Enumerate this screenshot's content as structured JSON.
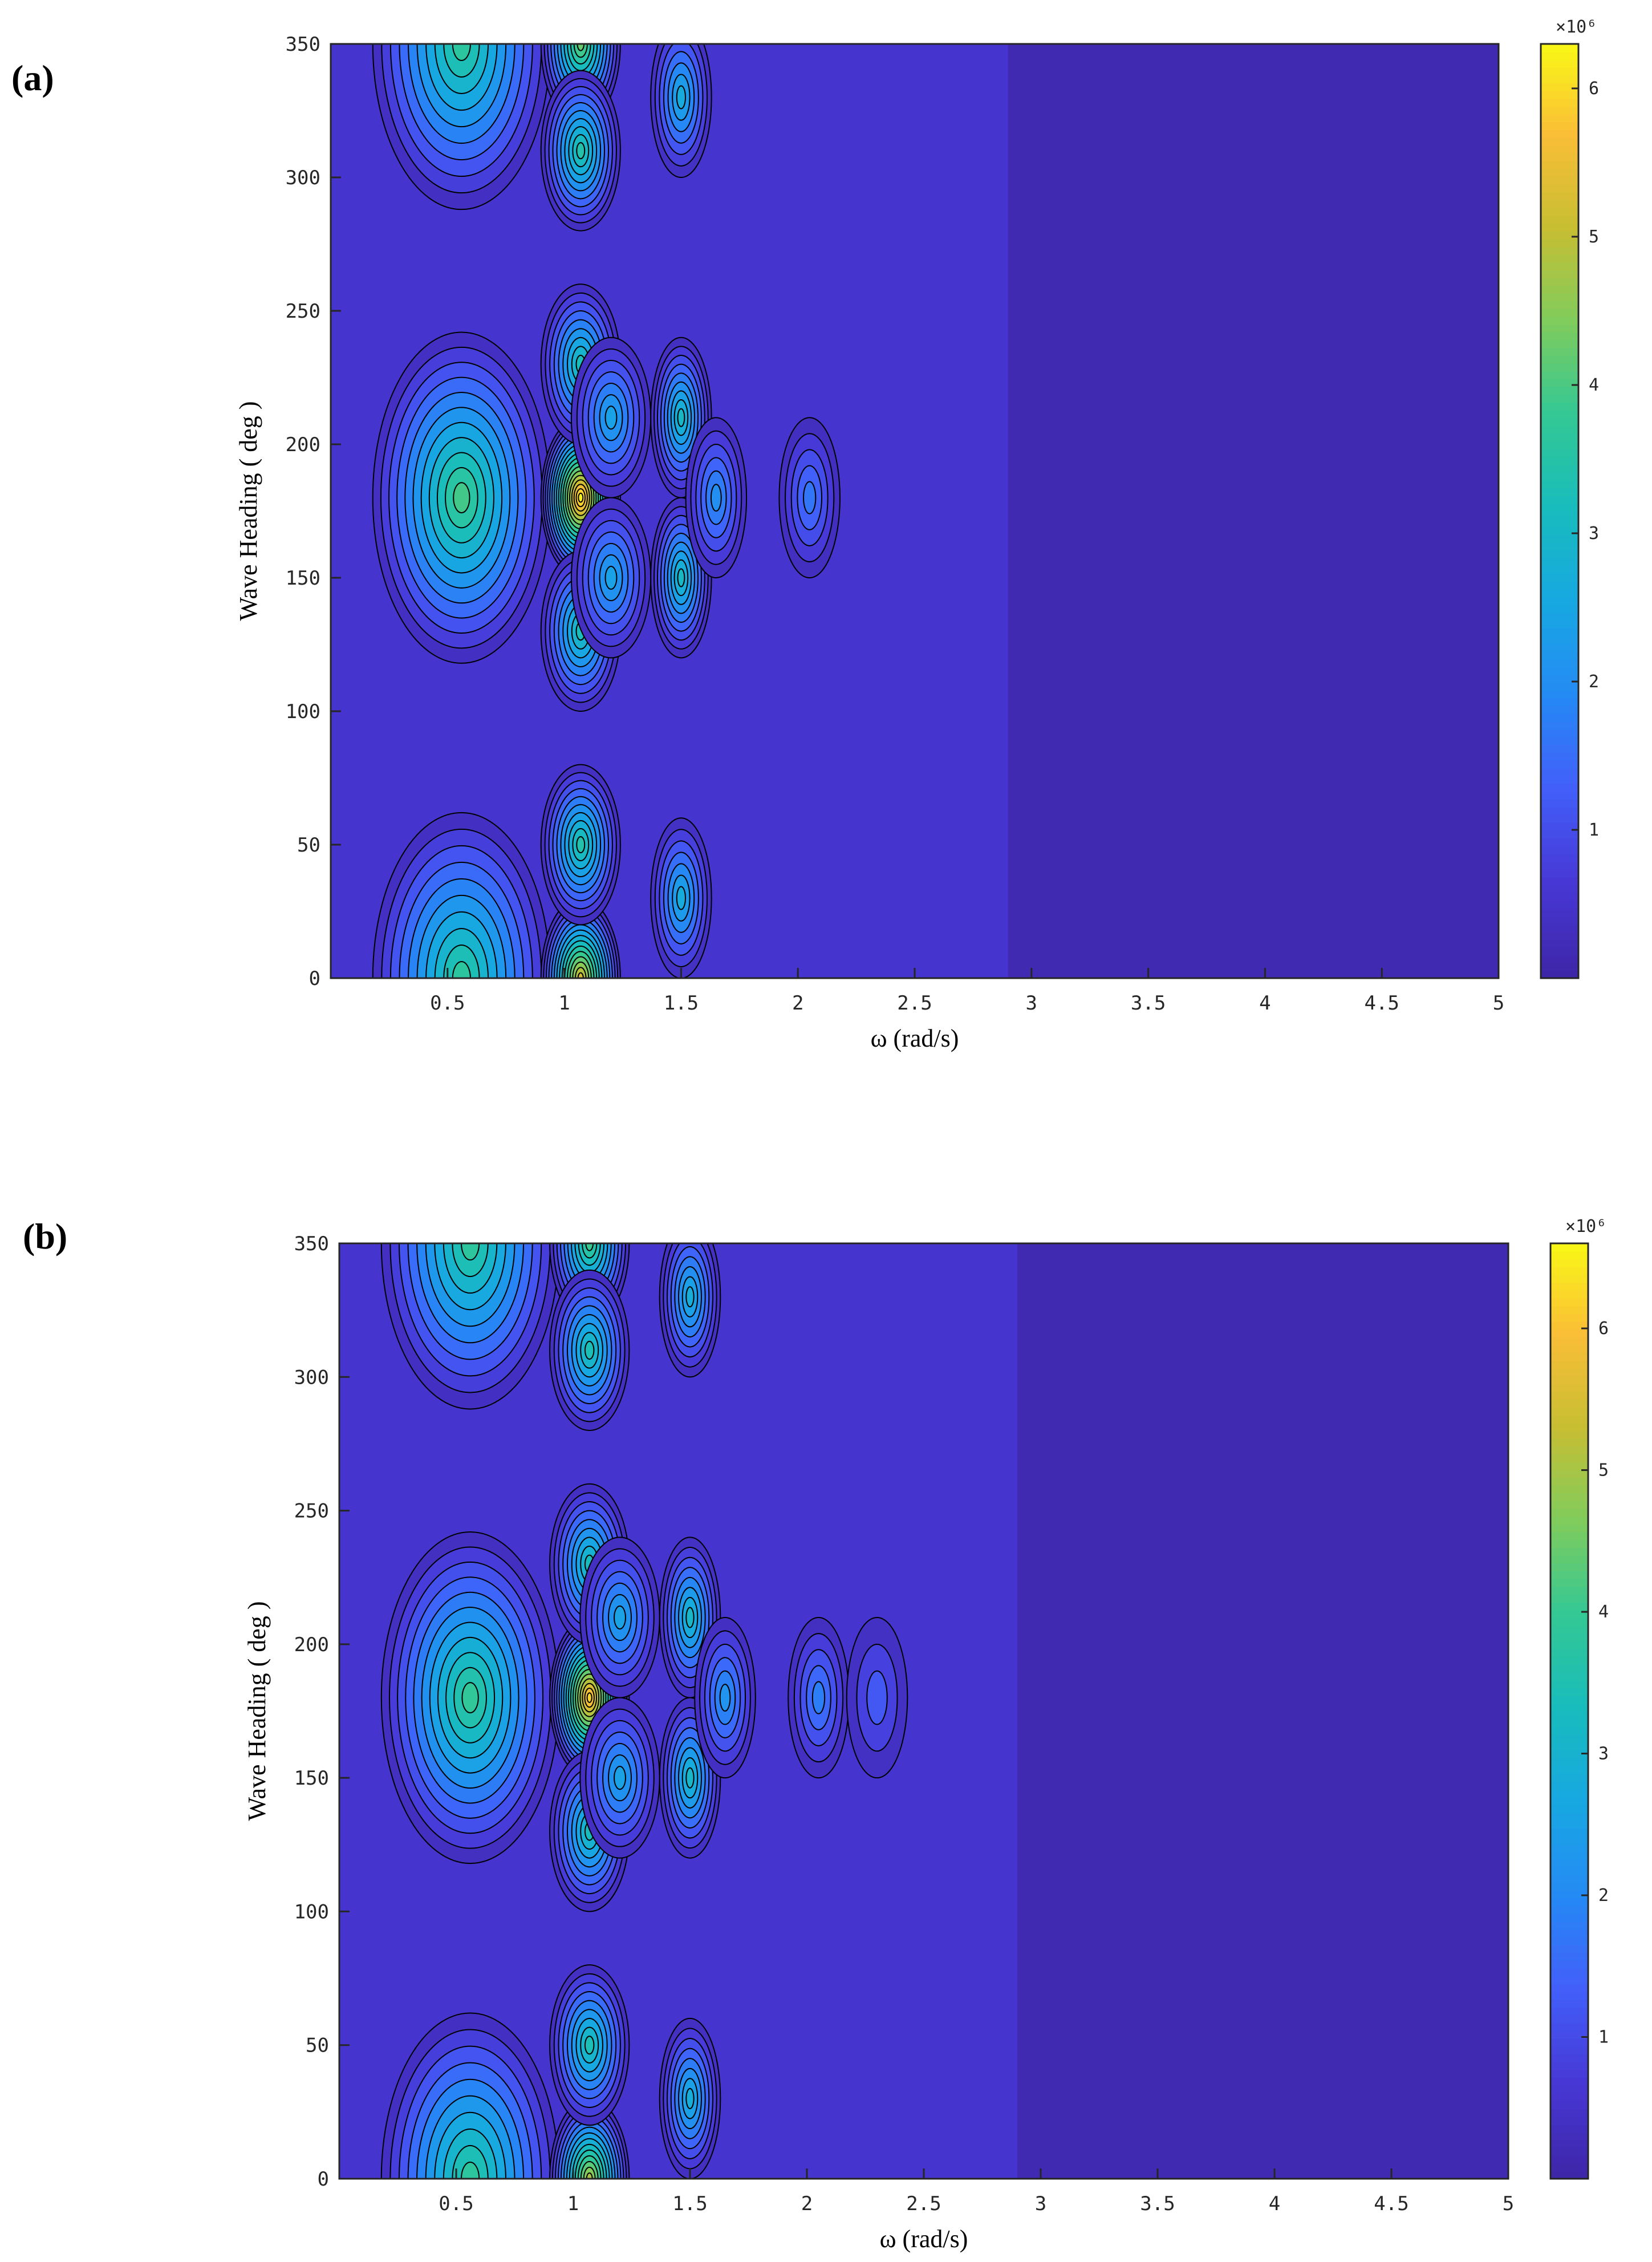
{
  "figure": {
    "panels": [
      {
        "label": "(a)",
        "colorbar_exponent": "×10⁶"
      },
      {
        "label": "(b)",
        "colorbar_exponent": "×10⁶"
      }
    ]
  },
  "chart_data": [
    {
      "type": "heatmap",
      "subtype": "filled-contour",
      "title": "",
      "xlabel": "ω (rad/s)",
      "ylabel": "Wave Heading ( deg )",
      "xlim": [
        0,
        5
      ],
      "ylim": [
        0,
        350
      ],
      "x_ticks": [
        0.5,
        1,
        1.5,
        2,
        2.5,
        3,
        3.5,
        4,
        4.5,
        5
      ],
      "y_ticks": [
        0,
        50,
        100,
        150,
        200,
        250,
        300,
        350
      ],
      "colorbar": {
        "range": [
          0,
          6.3
        ],
        "ticks": [
          1,
          2,
          3,
          4,
          5,
          6
        ],
        "multiplier": 1000000,
        "colormap": "parula"
      },
      "peaks": [
        {
          "x": 0.56,
          "y": 180,
          "value": 3.9
        },
        {
          "x": 0.56,
          "y": 0,
          "value": 3.6
        },
        {
          "x": 0.56,
          "y": 350,
          "value": 3.6
        },
        {
          "x": 1.07,
          "y": 180,
          "value": 6.2
        },
        {
          "x": 1.07,
          "y": 0,
          "value": 5.2
        },
        {
          "x": 1.07,
          "y": 350,
          "value": 4.2
        },
        {
          "x": 1.07,
          "y": 230,
          "value": 3.2
        },
        {
          "x": 1.07,
          "y": 130,
          "value": 3.2
        },
        {
          "x": 1.07,
          "y": 50,
          "value": 3.4
        },
        {
          "x": 1.07,
          "y": 310,
          "value": 3.4
        },
        {
          "x": 1.5,
          "y": 210,
          "value": 3.0
        },
        {
          "x": 1.5,
          "y": 150,
          "value": 3.0
        },
        {
          "x": 1.5,
          "y": 30,
          "value": 2.6
        },
        {
          "x": 1.5,
          "y": 330,
          "value": 2.6
        },
        {
          "x": 1.2,
          "y": 210,
          "value": 2.4
        },
        {
          "x": 1.2,
          "y": 150,
          "value": 2.4
        },
        {
          "x": 1.65,
          "y": 180,
          "value": 2.0
        },
        {
          "x": 2.05,
          "y": 180,
          "value": 1.6
        }
      ]
    },
    {
      "type": "heatmap",
      "subtype": "filled-contour",
      "title": "",
      "xlabel": "ω (rad/s)",
      "ylabel": "Wave Heading ( deg )",
      "xlim": [
        0,
        5
      ],
      "ylim": [
        0,
        350
      ],
      "x_ticks": [
        0.5,
        1,
        1.5,
        2,
        2.5,
        3,
        3.5,
        4,
        4.5,
        5
      ],
      "y_ticks": [
        0,
        50,
        100,
        150,
        200,
        250,
        300,
        350
      ],
      "colorbar": {
        "range": [
          0,
          6.6
        ],
        "ticks": [
          1,
          2,
          3,
          4,
          5,
          6
        ],
        "multiplier": 1000000,
        "colormap": "parula"
      },
      "peaks": [
        {
          "x": 0.56,
          "y": 180,
          "value": 3.9
        },
        {
          "x": 0.56,
          "y": 0,
          "value": 3.8
        },
        {
          "x": 0.56,
          "y": 350,
          "value": 3.8
        },
        {
          "x": 1.07,
          "y": 180,
          "value": 6.2
        },
        {
          "x": 1.07,
          "y": 0,
          "value": 5.0
        },
        {
          "x": 1.07,
          "y": 350,
          "value": 4.0
        },
        {
          "x": 1.07,
          "y": 230,
          "value": 3.3
        },
        {
          "x": 1.07,
          "y": 130,
          "value": 3.3
        },
        {
          "x": 1.07,
          "y": 50,
          "value": 3.4
        },
        {
          "x": 1.07,
          "y": 310,
          "value": 3.4
        },
        {
          "x": 1.5,
          "y": 210,
          "value": 3.1
        },
        {
          "x": 1.5,
          "y": 150,
          "value": 3.1
        },
        {
          "x": 1.5,
          "y": 30,
          "value": 2.8
        },
        {
          "x": 1.5,
          "y": 330,
          "value": 2.8
        },
        {
          "x": 1.2,
          "y": 210,
          "value": 2.5
        },
        {
          "x": 1.2,
          "y": 150,
          "value": 2.5
        },
        {
          "x": 1.65,
          "y": 180,
          "value": 2.2
        },
        {
          "x": 2.05,
          "y": 180,
          "value": 1.8
        },
        {
          "x": 2.3,
          "y": 180,
          "value": 1.2
        }
      ]
    }
  ]
}
